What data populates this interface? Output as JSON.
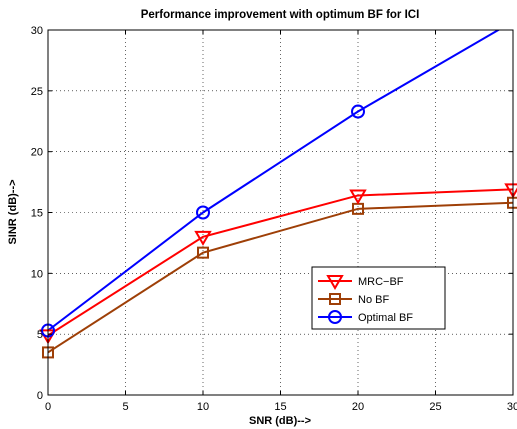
{
  "chart_data": {
    "type": "line",
    "title": "Performance improvement with optimum BF for ICI",
    "xlabel": "SNR (dB)-->",
    "ylabel": "SINR (dB)-->",
    "xlim": [
      0,
      30
    ],
    "ylim": [
      0,
      30
    ],
    "xticks": [
      0,
      5,
      10,
      15,
      20,
      25,
      30
    ],
    "yticks": [
      0,
      5,
      10,
      15,
      20,
      25,
      30
    ],
    "grid": true,
    "legend_position": "center-right",
    "series": [
      {
        "name": "MRC−BF",
        "color": "#ff0000",
        "marker": "triangle-down",
        "x": [
          0,
          10,
          20,
          30
        ],
        "y": [
          4.9,
          13.0,
          16.4,
          16.9
        ]
      },
      {
        "name": "No BF",
        "color": "#9e3f07",
        "marker": "square",
        "x": [
          0,
          10,
          20,
          30
        ],
        "y": [
          3.5,
          11.7,
          15.3,
          15.8
        ]
      },
      {
        "name": "Optimal BF",
        "color": "#0000ff",
        "marker": "circle",
        "x": [
          0,
          10,
          20,
          30
        ],
        "y": [
          5.3,
          15.0,
          23.3,
          30.7
        ]
      }
    ]
  }
}
